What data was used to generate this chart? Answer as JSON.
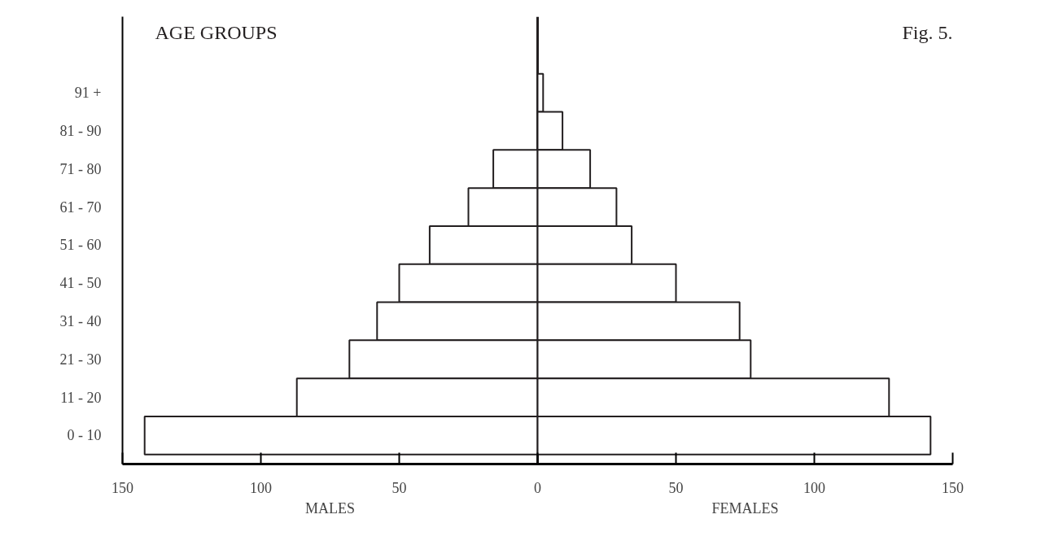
{
  "chart_data": {
    "type": "bar",
    "orientation": "horizontal",
    "stacked": true,
    "title": "AGE GROUPS",
    "annotations": [
      "Fig. 5.",
      "MALES",
      "FEMALES"
    ],
    "categories": [
      "91 +",
      "81 - 90",
      "71 - 80",
      "61 - 70",
      "51 - 60",
      "41 - 50",
      "31 - 40",
      "21 - 30",
      "11 - 20",
      "0 - 10"
    ],
    "series": [
      {
        "color": "#ffffff",
        "values": [
          null,
          null,
          -16,
          -25,
          -39,
          -50,
          -58,
          -68,
          -87,
          -142
        ]
      },
      {
        "color": "#ffffff",
        "values": [
          2,
          9,
          19,
          28.5,
          34,
          50,
          73,
          77,
          127,
          142
        ]
      }
    ],
    "xlim": [
      -150,
      150
    ],
    "xticks": [
      {
        "value": -150,
        "label": "150"
      },
      {
        "value": -100,
        "label": "100"
      },
      {
        "value": -50,
        "label": "50"
      },
      0,
      50,
      100,
      150
    ],
    "ref_lines": [
      {
        "axis": "x",
        "value": 0
      }
    ],
    "grid": false
  }
}
